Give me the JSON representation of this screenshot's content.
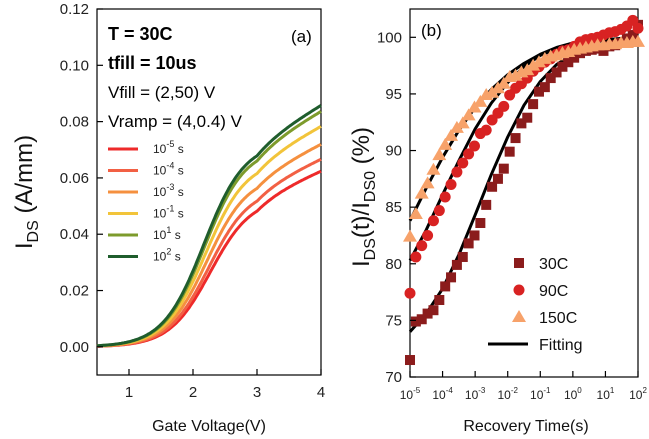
{
  "chart_data": [
    {
      "type": "line",
      "panel_label": "(a)",
      "xlabel": "Gate Voltage(V)",
      "ylabel_main": "I",
      "ylabel_sub": "DS",
      "ylabel_unit": " (A/mm)",
      "xlim": [
        0.5,
        4
      ],
      "ylim": [
        -0.01,
        0.12
      ],
      "xticks": [
        1,
        2,
        3,
        4
      ],
      "xtick_labels": [
        "1",
        "2",
        "3",
        "4"
      ],
      "yticks": [
        0.0,
        0.02,
        0.04,
        0.06,
        0.08,
        0.1,
        0.12
      ],
      "ytick_labels": [
        "0.00",
        "0.02",
        "0.04",
        "0.06",
        "0.08",
        "0.10",
        "0.12"
      ],
      "annotations": [
        {
          "text": "T = 30C",
          "bold": true
        },
        {
          "text": "tfill = 10us",
          "bold": true
        },
        {
          "text": "Vfill = (2,50) V",
          "bold": false
        },
        {
          "text": "Vramp = (4,0.4) V",
          "bold": false
        }
      ],
      "legend_placement": "center-left",
      "series": [
        {
          "name": "10-5 s",
          "base": "10",
          "exp": "-5",
          "unit": " s",
          "color": "#ee2a2a",
          "sat": 0.059,
          "vth": 2.27
        },
        {
          "name": "10-4 s",
          "base": "10",
          "exp": "-4",
          "unit": " s",
          "color": "#f26044",
          "sat": 0.063,
          "vth": 2.25
        },
        {
          "name": "10-3 s",
          "base": "10",
          "exp": "-3",
          "unit": " s",
          "color": "#f5903f",
          "sat": 0.068,
          "vth": 2.22
        },
        {
          "name": "10-1 s",
          "base": "10",
          "exp": "-1",
          "unit": " s",
          "color": "#f2c43a",
          "sat": 0.074,
          "vth": 2.2
        },
        {
          "name": "101 s",
          "base": "10",
          "exp": "1",
          "unit": " s",
          "color": "#7d9b2c",
          "sat": 0.079,
          "vth": 2.18
        },
        {
          "name": "102 s",
          "base": "10",
          "exp": "2",
          "unit": " s",
          "color": "#1f5d2d",
          "sat": 0.081,
          "vth": 2.17
        }
      ]
    },
    {
      "type": "scatter",
      "panel_label": "(b)",
      "xlabel": "Recovery Time(s)",
      "ylabel": "I_DS(t)/I_DS0 (%)",
      "ylabel_parts": [
        "I",
        "DS",
        "(t)/I",
        "DS0",
        " (%)"
      ],
      "xlim_log10": [
        -5,
        2
      ],
      "ylim": [
        70,
        102.5
      ],
      "xticks_exp": [
        "-5",
        "-4",
        "-3",
        "-2",
        "-1",
        "0",
        "1",
        "2"
      ],
      "xtick_base": "10",
      "yticks": [
        70,
        75,
        80,
        85,
        90,
        95,
        100
      ],
      "ytick_labels": [
        "70",
        "75",
        "80",
        "85",
        "90",
        "95",
        "100"
      ],
      "legend_placement": "bottom-right",
      "series": [
        {
          "name": "30C",
          "marker": "square",
          "color": "#8b1c1c",
          "x_log10": [
            -5,
            -4.82,
            -4.64,
            -4.46,
            -4.28,
            -4.1,
            -3.92,
            -3.74,
            -3.56,
            -3.38,
            -3.2,
            -3.02,
            -2.84,
            -2.66,
            -2.48,
            -2.3,
            -2.12,
            -1.94,
            -1.76,
            -1.58,
            -1.4,
            -1.22,
            -1.04,
            -0.86,
            -0.68,
            -0.5,
            -0.32,
            -0.14,
            0.04,
            0.22,
            0.4,
            0.58,
            0.76,
            0.94,
            1.12,
            1.3,
            1.48,
            1.66,
            1.84,
            2.0
          ],
          "y": [
            71.5,
            74.9,
            75.1,
            75.6,
            75.9,
            76.8,
            78.0,
            78.8,
            79.9,
            80.6,
            81.8,
            82.5,
            83.6,
            85.2,
            86.8,
            87.5,
            88.4,
            89.9,
            91.1,
            92.4,
            92.9,
            94.1,
            95.2,
            95.6,
            96.4,
            96.9,
            97.4,
            97.8,
            98.2,
            98.6,
            98.8,
            98.9,
            99.0,
            98.8,
            99.2,
            99.3,
            99.5,
            99.9,
            100.2,
            101.1
          ]
        },
        {
          "name": "90C",
          "marker": "circle",
          "color": "#d82222",
          "x_log10": [
            -5,
            -4.82,
            -4.64,
            -4.46,
            -4.28,
            -4.1,
            -3.92,
            -3.74,
            -3.56,
            -3.38,
            -3.2,
            -3.02,
            -2.84,
            -2.66,
            -2.48,
            -2.3,
            -2.12,
            -1.94,
            -1.76,
            -1.58,
            -1.4,
            -1.22,
            -1.04,
            -0.86,
            -0.68,
            -0.5,
            -0.32,
            -0.14,
            0.04,
            0.22,
            0.4,
            0.58,
            0.76,
            0.94,
            1.12,
            1.3,
            1.48,
            1.66,
            1.84,
            2.0
          ],
          "y": [
            77.4,
            80.6,
            81.6,
            82.5,
            83.8,
            84.7,
            85.9,
            87.0,
            88.1,
            88.9,
            89.7,
            90.4,
            91.5,
            91.8,
            92.7,
            93.3,
            93.9,
            94.9,
            95.5,
            95.9,
            96.4,
            97.0,
            97.4,
            97.8,
            98.1,
            98.5,
            98.8,
            98.9,
            99.2,
            99.6,
            99.8,
            99.9,
            100.0,
            100.2,
            100.4,
            100.5,
            100.7,
            101.0,
            101.5,
            100.8
          ]
        },
        {
          "name": "150C",
          "marker": "triangle",
          "color": "#f7a26a",
          "x_log10": [
            -5,
            -4.82,
            -4.64,
            -4.46,
            -4.28,
            -4.1,
            -3.92,
            -3.74,
            -3.56,
            -3.38,
            -3.2,
            -3.02,
            -2.84,
            -2.66,
            -2.48,
            -2.3,
            -2.12,
            -1.94,
            -1.76,
            -1.58,
            -1.4,
            -1.22,
            -1.04,
            -0.86,
            -0.68,
            -0.5,
            -0.32,
            -0.14,
            0.04,
            0.22,
            0.4,
            0.58,
            0.76,
            0.94,
            1.12,
            1.3,
            1.48,
            1.66,
            1.84,
            2.0
          ],
          "y": [
            82.4,
            84.4,
            86.2,
            87.1,
            88.3,
            89.6,
            90.5,
            91.3,
            92.0,
            92.4,
            93.1,
            93.8,
            94.3,
            94.9,
            95.1,
            95.5,
            95.9,
            96.5,
            96.6,
            96.9,
            97.1,
            97.5,
            97.8,
            98.1,
            98.3,
            98.4,
            98.6,
            98.7,
            98.9,
            99.0,
            99.1,
            99.2,
            99.3,
            99.3,
            99.4,
            99.4,
            99.5,
            99.5,
            99.6,
            99.6
          ]
        },
        {
          "name": "Fitting",
          "marker": "line",
          "color": "#000000",
          "curves": [
            {
              "x_log10": [
                -5,
                -4.5,
                -4,
                -3.5,
                -3,
                -2.5,
                -2,
                -1.5,
                -1,
                -0.5,
                0,
                0.5,
                1,
                1.5,
                2
              ],
              "y": [
                74.0,
                75.6,
                77.8,
                80.8,
                84.3,
                87.9,
                91.2,
                94.0,
                96.1,
                97.6,
                98.5,
                99.0,
                99.2,
                99.3,
                99.3
              ]
            },
            {
              "x_log10": [
                -5,
                -4.5,
                -4,
                -3.5,
                -3,
                -2.5,
                -2,
                -1.5,
                -1,
                -0.5,
                0,
                0.5,
                1,
                1.5,
                2
              ],
              "y": [
                80.3,
                83.0,
                86.1,
                89.1,
                91.9,
                94.2,
                96.0,
                97.4,
                98.4,
                99.0,
                99.4,
                99.6,
                99.7,
                99.7,
                99.7
              ]
            },
            {
              "x_log10": [
                -5,
                -4.5,
                -4,
                -3.5,
                -3,
                -2.5,
                -2,
                -1.5,
                -1,
                -0.5,
                0,
                0.5,
                1,
                1.5,
                2
              ],
              "y": [
                83.8,
                86.7,
                89.4,
                91.8,
                93.8,
                95.4,
                96.7,
                97.7,
                98.5,
                99.1,
                99.5,
                99.7,
                99.8,
                99.9,
                99.9
              ]
            }
          ]
        }
      ]
    }
  ]
}
